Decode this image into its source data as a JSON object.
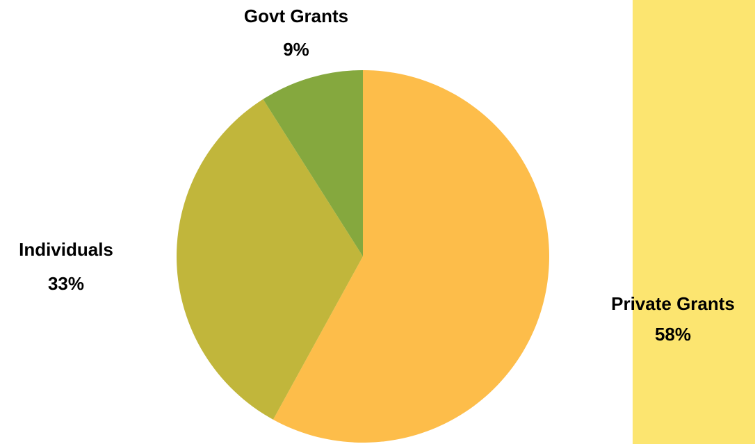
{
  "colors": {
    "panel": "#FCE570"
  },
  "chart_data": {
    "type": "pie",
    "start_angle": "12 o'clock, clockwise",
    "slices": [
      {
        "label": "Private Grants",
        "value": 58,
        "pct_label": "58%",
        "color": "#FDBD4A"
      },
      {
        "label": "Individuals",
        "value": 33,
        "pct_label": "33%",
        "color": "#C1B63B"
      },
      {
        "label": "Govt Grants",
        "value": 9,
        "pct_label": "9%",
        "color": "#85A83E"
      }
    ]
  }
}
